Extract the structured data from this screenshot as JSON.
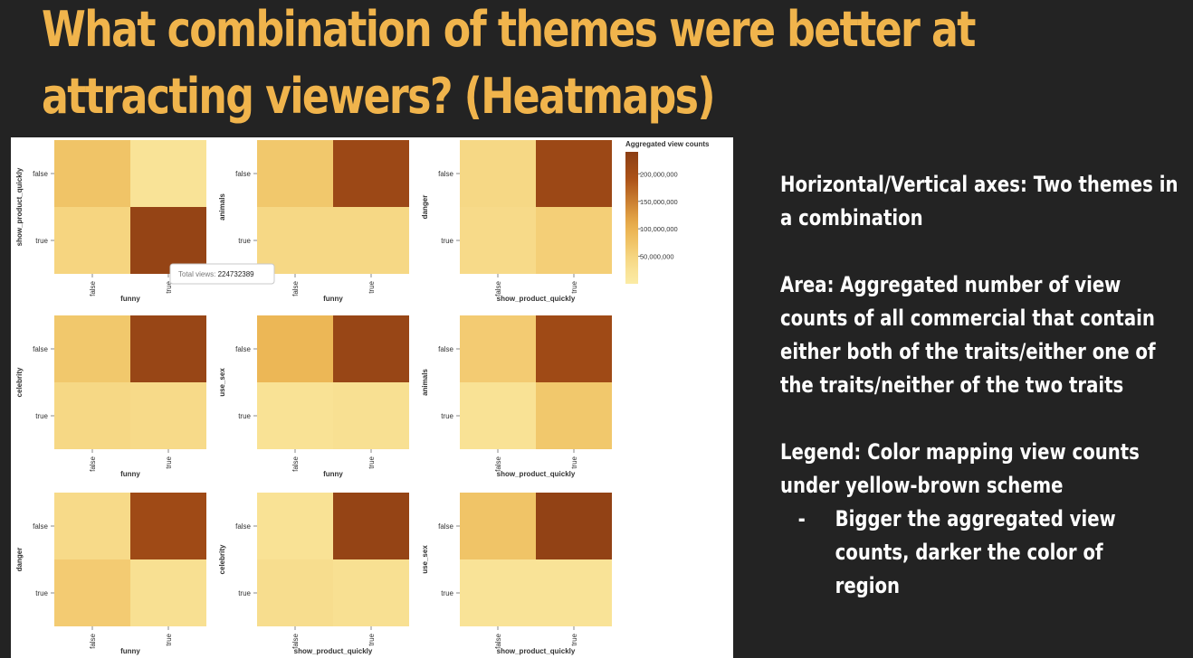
{
  "slide": {
    "title": "What combination of themes were better at attracting viewers? (Heatmaps)"
  },
  "notes": {
    "axes": "Horizontal/Vertical axes: Two themes in a combination",
    "area": "Area: Aggregated number of view counts of all commercial that contain either both of the traits/either one of the traits/neither of the two traits",
    "legend": "Legend: Color mapping view counts under yellow-brown scheme",
    "legend_bullet_marker": "-",
    "legend_bullet": "Bigger the aggregated view counts, darker the color of region"
  },
  "tooltip": {
    "label": "Total views:",
    "value": "224732389"
  },
  "colors": {
    "c1": "#fbeba4",
    "c2": "#f8e092",
    "c3": "#f5d27c",
    "c4": "#efc162",
    "c5": "#e9ac4a",
    "c6": "#ac5218",
    "c7": "#8b3e14",
    "background": "#232323",
    "title": "#f0b44c"
  },
  "chart_data": {
    "type": "heatmap",
    "legend": {
      "title": "Aggregated view counts",
      "ticks": [
        "200,000,000",
        "150,000,000",
        "100,000,000",
        "50,000,000"
      ],
      "tick_values": [
        200000000,
        150000000,
        100000000,
        50000000
      ],
      "domain": [
        0,
        240000000
      ]
    },
    "row_categories": [
      "false",
      "true"
    ],
    "col_categories": [
      "false",
      "true"
    ],
    "panels": [
      {
        "xlabel": "funny",
        "ylabel": "show_product_quickly",
        "values": [
          [
            75000000,
            22000000
          ],
          [
            50000000,
            224732389
          ]
        ]
      },
      {
        "xlabel": "funny",
        "ylabel": "animals",
        "values": [
          [
            70000000,
            215000000
          ],
          [
            45000000,
            45000000
          ]
        ]
      },
      {
        "xlabel": "show_product_quickly",
        "ylabel": "danger",
        "values": [
          [
            45000000,
            215000000
          ],
          [
            40000000,
            60000000
          ]
        ]
      },
      {
        "xlabel": "funny",
        "ylabel": "celebrity",
        "values": [
          [
            70000000,
            220000000
          ],
          [
            45000000,
            40000000
          ]
        ]
      },
      {
        "xlabel": "funny",
        "ylabel": "use_sex",
        "values": [
          [
            95000000,
            220000000
          ],
          [
            25000000,
            30000000
          ]
        ]
      },
      {
        "xlabel": "show_product_quickly",
        "ylabel": "animals",
        "values": [
          [
            65000000,
            210000000
          ],
          [
            25000000,
            70000000
          ]
        ]
      },
      {
        "xlabel": "funny",
        "ylabel": "danger",
        "values": [
          [
            40000000,
            210000000
          ],
          [
            65000000,
            30000000
          ]
        ]
      },
      {
        "xlabel": "show_product_quickly",
        "ylabel": "celebrity",
        "values": [
          [
            25000000,
            225000000
          ],
          [
            35000000,
            30000000
          ]
        ]
      },
      {
        "xlabel": "show_product_quickly",
        "ylabel": "use_sex",
        "values": [
          [
            75000000,
            230000000
          ],
          [
            22000000,
            22000000
          ]
        ]
      }
    ]
  }
}
